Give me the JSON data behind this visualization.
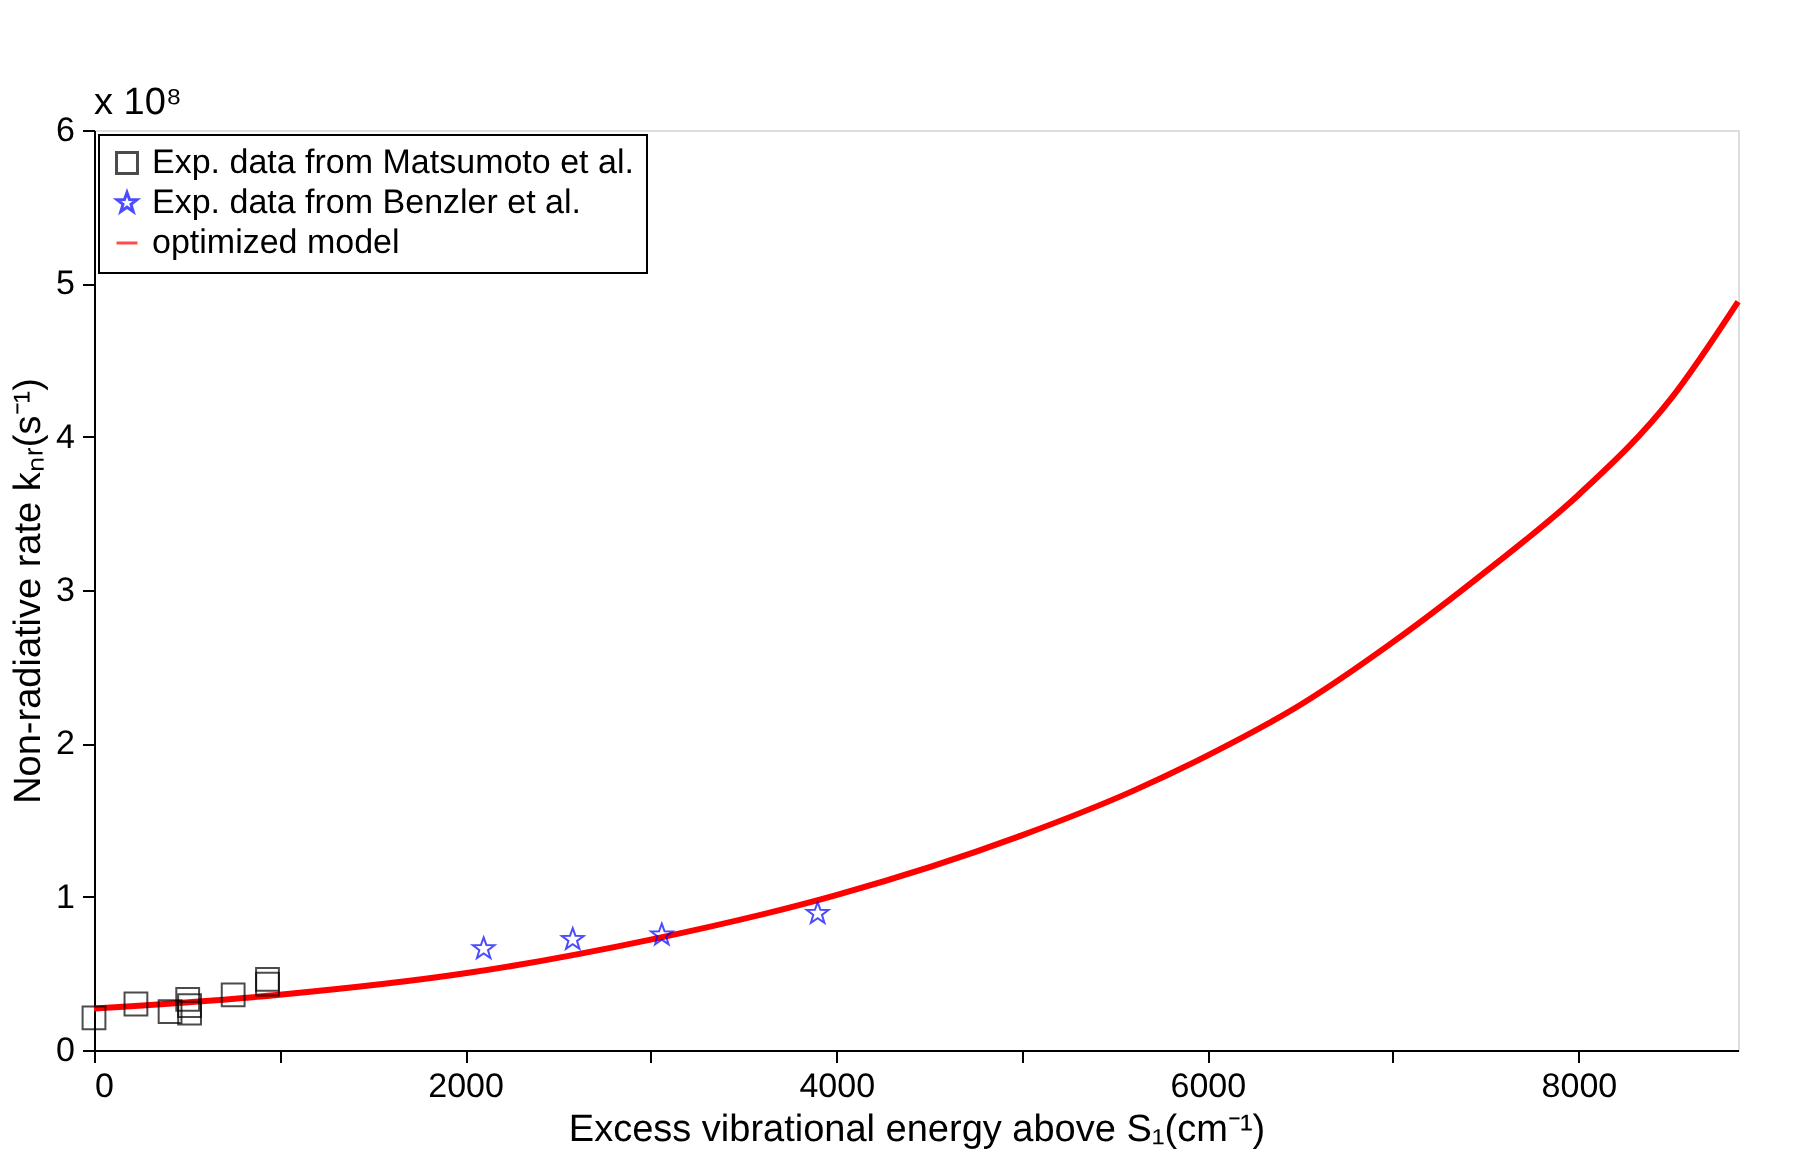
{
  "chart_data": {
    "type": "scatter",
    "xlabel": "Excess vibrational energy above S₁(cm⁻¹)",
    "ylabel": "Non-radiative rate kₙᵣ(s⁻¹)",
    "annotations": [
      "x 10⁸"
    ],
    "xlim": [
      0,
      8860
    ],
    "ylim": [
      0,
      6
    ],
    "xticks": [
      0,
      {
        "value": 1000,
        "label": null
      },
      2000,
      {
        "value": 3000,
        "label": null
      },
      4000,
      {
        "value": 5000,
        "label": null
      },
      6000,
      {
        "value": 7000,
        "label": null
      },
      8000
    ],
    "yticks": [
      0,
      1,
      2,
      3,
      4,
      5,
      6
    ],
    "grid": false,
    "legend": "top left",
    "series": [
      {
        "name": "Exp. data from Matsumoto et al.",
        "marker": "square",
        "color": "#000000",
        "x": [
          0,
          226,
          410,
          505,
          515,
          515,
          750,
          935,
          935
        ],
        "values": [
          0.21,
          0.3,
          0.25,
          0.33,
          0.29,
          0.24,
          0.36,
          0.43,
          0.46
        ]
      },
      {
        "name": "Exp. data from Benzler et al.",
        "marker": "star",
        "color": "#0000ff",
        "x": [
          2100,
          2580,
          3060,
          3900
        ],
        "values": [
          0.66,
          0.72,
          0.75,
          0.89
        ]
      },
      {
        "name": "optimized model",
        "type": "line",
        "marker": "none",
        "line_style": "solid",
        "color": "#ff0000",
        "x": [
          0,
          1000,
          2000,
          3000,
          4000,
          5000,
          5600,
          6000,
          6500,
          7000,
          7500,
          8000,
          8500,
          8860
        ],
        "values": [
          0.27,
          0.36,
          0.5,
          0.72,
          1.01,
          1.4,
          1.69,
          1.92,
          2.25,
          2.66,
          3.12,
          3.62,
          4.25,
          4.88
        ]
      }
    ]
  }
}
